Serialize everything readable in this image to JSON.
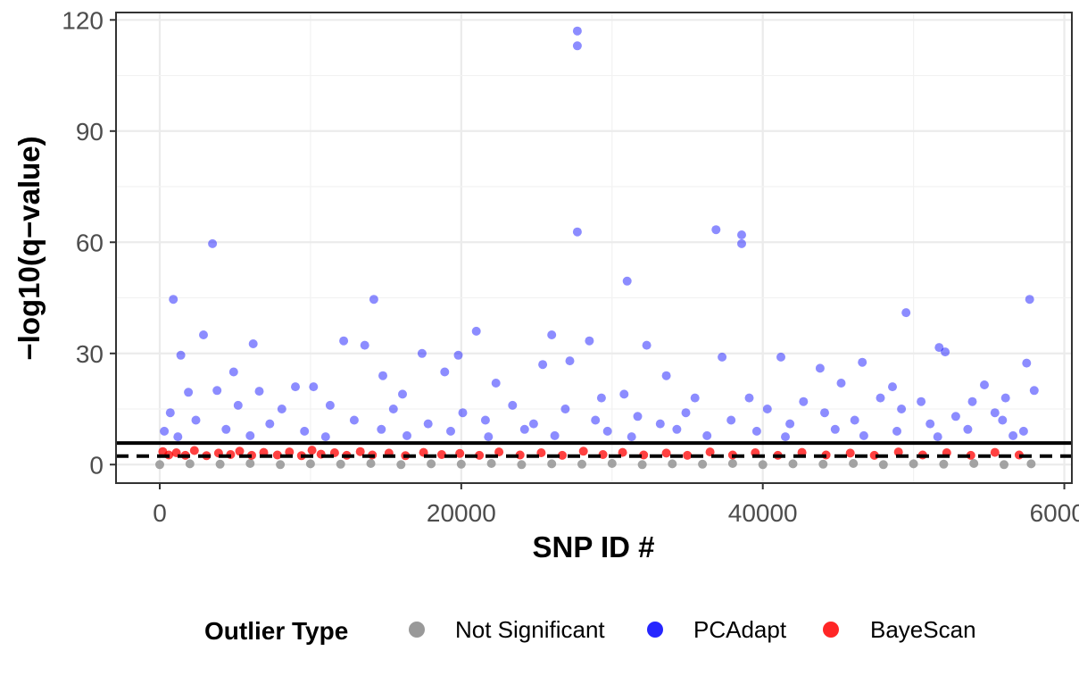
{
  "chart_data": {
    "type": "scatter",
    "title": "",
    "xlabel": "SNP ID #",
    "ylabel": "−log10(q−value)",
    "xlim": [
      -2900,
      60500
    ],
    "ylim": [
      -5,
      122
    ],
    "x_ticks": [
      0,
      20000,
      40000,
      60000
    ],
    "x_tick_labels": [
      "0",
      "20000",
      "40000",
      "60000"
    ],
    "y_ticks": [
      0,
      30,
      60,
      90,
      120
    ],
    "y_tick_labels": [
      "0",
      "30",
      "60",
      "90",
      "120"
    ],
    "grid": true,
    "legend_position": "bottom",
    "legend_title": "Outlier Type",
    "hlines": [
      {
        "y": 5.8,
        "style": "solid"
      },
      {
        "y": 2.3,
        "style": "dashed"
      }
    ],
    "series": [
      {
        "name": "Not Significant",
        "color": "#999999",
        "points": [
          [
            0,
            0
          ],
          [
            2000,
            0.2
          ],
          [
            4000,
            0.1
          ],
          [
            6000,
            0.3
          ],
          [
            8000,
            0
          ],
          [
            10000,
            0.2
          ],
          [
            12000,
            0.1
          ],
          [
            14000,
            0.3
          ],
          [
            16000,
            0
          ],
          [
            18000,
            0.2
          ],
          [
            20000,
            0.1
          ],
          [
            22000,
            0.3
          ],
          [
            24000,
            0
          ],
          [
            26000,
            0.2
          ],
          [
            28000,
            0.1
          ],
          [
            30000,
            0.3
          ],
          [
            32000,
            0
          ],
          [
            34000,
            0.2
          ],
          [
            36000,
            0.1
          ],
          [
            38000,
            0.3
          ],
          [
            40000,
            0
          ],
          [
            42000,
            0.2
          ],
          [
            44000,
            0.1
          ],
          [
            46000,
            0.3
          ],
          [
            48000,
            0
          ],
          [
            50000,
            0.2
          ],
          [
            52000,
            0.1
          ],
          [
            54000,
            0.3
          ],
          [
            56000,
            0
          ],
          [
            57800,
            0.2
          ]
        ]
      },
      {
        "name": "PCAdapt",
        "color": "#0000ff",
        "points": [
          [
            27700,
            117
          ],
          [
            27700,
            113
          ],
          [
            27700,
            62.8
          ],
          [
            36900,
            63.4
          ],
          [
            38600,
            62
          ],
          [
            38600,
            59.6
          ],
          [
            3500,
            59.6
          ],
          [
            31000,
            49.5
          ],
          [
            900,
            44.6
          ],
          [
            14200,
            44.6
          ],
          [
            57700,
            44.6
          ],
          [
            49500,
            41
          ],
          [
            21000,
            36
          ],
          [
            2900,
            35
          ],
          [
            26000,
            35
          ],
          [
            28500,
            33.4
          ],
          [
            12200,
            33.4
          ],
          [
            6200,
            32.6
          ],
          [
            32300,
            32.2
          ],
          [
            13600,
            32.2
          ],
          [
            51700,
            31.6
          ],
          [
            52100,
            30.4
          ],
          [
            17400,
            30
          ],
          [
            19800,
            29.5
          ],
          [
            1400,
            29.5
          ],
          [
            41200,
            29
          ],
          [
            37300,
            29
          ],
          [
            27200,
            28
          ],
          [
            57500,
            27.4
          ],
          [
            46600,
            27.6
          ],
          [
            25400,
            27
          ],
          [
            43800,
            26
          ],
          [
            4900,
            25
          ],
          [
            18900,
            25
          ],
          [
            14800,
            24
          ],
          [
            33600,
            24
          ],
          [
            45200,
            22
          ],
          [
            22300,
            22
          ],
          [
            48600,
            21
          ],
          [
            9000,
            21
          ],
          [
            54700,
            21.5
          ],
          [
            10200,
            21
          ],
          [
            3800,
            20
          ],
          [
            1900,
            19.5
          ],
          [
            6600,
            19.8
          ],
          [
            16100,
            19
          ],
          [
            29300,
            18
          ],
          [
            30800,
            19
          ],
          [
            35500,
            18
          ],
          [
            39100,
            18
          ],
          [
            42700,
            17
          ],
          [
            47800,
            18
          ],
          [
            50500,
            17
          ],
          [
            53900,
            17
          ],
          [
            56100,
            18
          ],
          [
            58000,
            20
          ],
          [
            700,
            14
          ],
          [
            5200,
            16
          ],
          [
            8100,
            15
          ],
          [
            11300,
            16
          ],
          [
            15500,
            15
          ],
          [
            20100,
            14
          ],
          [
            23400,
            16
          ],
          [
            26900,
            15
          ],
          [
            31700,
            13
          ],
          [
            34900,
            14
          ],
          [
            40300,
            15
          ],
          [
            44100,
            14
          ],
          [
            49200,
            15
          ],
          [
            52800,
            13
          ],
          [
            55400,
            14
          ],
          [
            2400,
            12
          ],
          [
            7300,
            11
          ],
          [
            12900,
            12
          ],
          [
            17800,
            11
          ],
          [
            21600,
            12
          ],
          [
            24800,
            11
          ],
          [
            28900,
            12
          ],
          [
            33200,
            11
          ],
          [
            37900,
            12
          ],
          [
            41800,
            11
          ],
          [
            46100,
            12
          ],
          [
            51100,
            11
          ],
          [
            55900,
            12
          ],
          [
            300,
            9
          ],
          [
            4400,
            9.5
          ],
          [
            9600,
            9
          ],
          [
            14700,
            9.5
          ],
          [
            19300,
            9
          ],
          [
            24200,
            9.5
          ],
          [
            29700,
            9
          ],
          [
            34300,
            9.5
          ],
          [
            39600,
            9
          ],
          [
            44800,
            9.5
          ],
          [
            48900,
            9
          ],
          [
            53600,
            9.5
          ],
          [
            57300,
            9
          ],
          [
            1200,
            7.5
          ],
          [
            6000,
            7.8
          ],
          [
            11000,
            7.5
          ],
          [
            16400,
            7.8
          ],
          [
            21800,
            7.5
          ],
          [
            26200,
            7.8
          ],
          [
            31300,
            7.5
          ],
          [
            36300,
            7.8
          ],
          [
            41500,
            7.5
          ],
          [
            46700,
            7.8
          ],
          [
            51600,
            7.5
          ],
          [
            56600,
            7.8
          ]
        ]
      },
      {
        "name": "BayeScan",
        "color": "#ff0000",
        "points": [
          [
            200,
            3.5
          ],
          [
            600,
            2.6
          ],
          [
            1100,
            3.2
          ],
          [
            1700,
            2.5
          ],
          [
            2300,
            3.8
          ],
          [
            3100,
            2.4
          ],
          [
            3900,
            3.1
          ],
          [
            4700,
            2.7
          ],
          [
            5300,
            3.6
          ],
          [
            6100,
            2.5
          ],
          [
            6900,
            3.3
          ],
          [
            7800,
            2.6
          ],
          [
            8600,
            3.4
          ],
          [
            9400,
            2.4
          ],
          [
            10100,
            3.9
          ],
          [
            10700,
            2.8
          ],
          [
            11600,
            3.2
          ],
          [
            12400,
            2.5
          ],
          [
            13300,
            3.5
          ],
          [
            14100,
            2.6
          ],
          [
            15200,
            3.1
          ],
          [
            16300,
            2.4
          ],
          [
            17500,
            3.3
          ],
          [
            18700,
            2.7
          ],
          [
            19900,
            3.0
          ],
          [
            21200,
            2.5
          ],
          [
            22500,
            3.4
          ],
          [
            23900,
            2.6
          ],
          [
            25300,
            3.2
          ],
          [
            26700,
            2.5
          ],
          [
            28100,
            3.6
          ],
          [
            29400,
            2.7
          ],
          [
            30700,
            3.3
          ],
          [
            32100,
            2.6
          ],
          [
            33600,
            3.1
          ],
          [
            35000,
            2.5
          ],
          [
            36500,
            3.4
          ],
          [
            38000,
            2.6
          ],
          [
            39500,
            3.2
          ],
          [
            41000,
            2.5
          ],
          [
            42600,
            3.3
          ],
          [
            44200,
            2.6
          ],
          [
            45800,
            3.1
          ],
          [
            47400,
            2.5
          ],
          [
            49000,
            3.4
          ],
          [
            50600,
            2.6
          ],
          [
            52200,
            3.2
          ],
          [
            53800,
            2.5
          ],
          [
            55400,
            3.3
          ],
          [
            57000,
            2.6
          ]
        ]
      }
    ]
  }
}
